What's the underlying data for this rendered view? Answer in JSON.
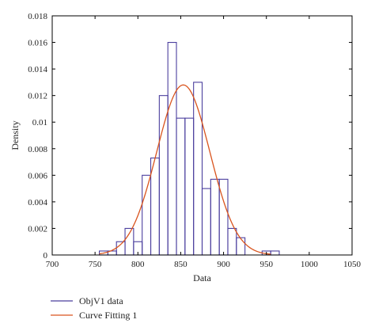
{
  "chart_data": {
    "type": "bar",
    "xlabel": "Data",
    "ylabel": "Density",
    "xlim": [
      700,
      1050
    ],
    "ylim": [
      0,
      0.018
    ],
    "xticks": [
      "700",
      "750",
      "800",
      "850",
      "900",
      "950",
      "1000",
      "1050"
    ],
    "yticks": [
      "0",
      "0.002",
      "0.004",
      "0.006",
      "0.008",
      "0.01",
      "0.012",
      "0.014",
      "0.016",
      "0.018"
    ],
    "grid": false,
    "legend_position": "bottom-left",
    "series": [
      {
        "name": "ObjV1 data",
        "type": "histogram",
        "color": "#4b3f9e",
        "bin_width": 10,
        "bin_starts": [
          755,
          765,
          775,
          785,
          795,
          805,
          815,
          825,
          835,
          845,
          855,
          865,
          875,
          885,
          895,
          905,
          915,
          925,
          935,
          945,
          955
        ],
        "values": [
          0.0003,
          0.0003,
          0.001,
          0.002,
          0.001,
          0.006,
          0.0073,
          0.012,
          0.016,
          0.0103,
          0.0103,
          0.013,
          0.005,
          0.0057,
          0.0057,
          0.002,
          0.0013,
          0,
          0,
          0.0003,
          0.0003
        ]
      },
      {
        "name": "Curve Fitting 1",
        "type": "normal-fit",
        "color": "#d9541e",
        "mean": 853,
        "std": 31,
        "peak": 0.0128
      }
    ]
  }
}
